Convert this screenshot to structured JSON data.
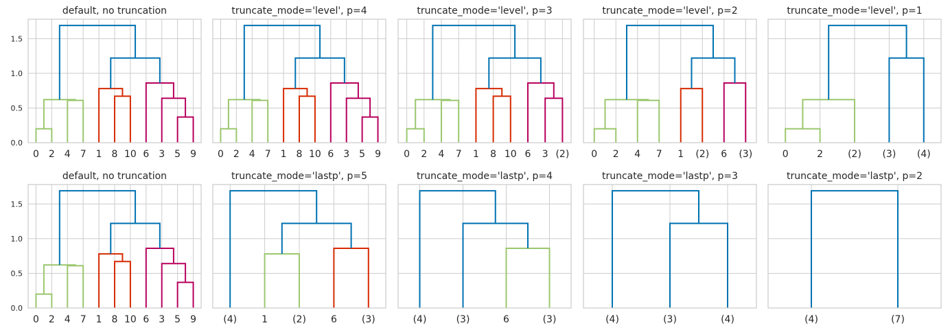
{
  "chart_data": [
    {
      "type": "dendrogram",
      "title": "default, no truncation",
      "ylim": [
        0,
        1.78
      ],
      "yticks": [
        0.0,
        0.5,
        1.0,
        1.5
      ],
      "show_yticks": true,
      "leaves": [
        "0",
        "2",
        "4",
        "7",
        "1",
        "8",
        "10",
        "6",
        "3",
        "5",
        "9"
      ],
      "links": [
        [
          0.5,
          1.5,
          0,
          0,
          0.2,
          0.2,
          "#9bc76e"
        ],
        [
          2.5,
          3.5,
          0,
          0,
          0.61,
          0.61,
          "#9bc76e"
        ],
        [
          1,
          3,
          0.2,
          0.61,
          0.62,
          0.62,
          "#9bc76e"
        ],
        [
          5.5,
          6.5,
          0,
          0,
          0.67,
          0.67,
          "#d62a00"
        ],
        [
          4.5,
          6,
          0,
          0.67,
          0.78,
          0.78,
          "#d62a00"
        ],
        [
          9.5,
          10.5,
          0,
          0,
          0.37,
          0.37,
          "#b8005e"
        ],
        [
          8.5,
          10,
          0,
          0.37,
          0.64,
          0.64,
          "#b8005e"
        ],
        [
          7.5,
          9.25,
          0,
          0.64,
          0.86,
          0.86,
          "#b8005e"
        ],
        [
          5.25,
          8.375,
          0.78,
          0.86,
          1.22,
          1.22,
          "#0072b2"
        ],
        [
          2,
          6.8125,
          0.62,
          1.22,
          1.69,
          1.69,
          "#0072b2"
        ]
      ]
    },
    {
      "type": "dendrogram",
      "title": "truncate_mode='level', p=4",
      "ylim": [
        0,
        1.78
      ],
      "yticks": [
        0.0,
        0.5,
        1.0,
        1.5
      ],
      "show_yticks": false,
      "leaves": [
        "0",
        "2",
        "4",
        "7",
        "1",
        "8",
        "10",
        "6",
        "3",
        "5",
        "9"
      ],
      "links": [
        [
          0.5,
          1.5,
          0,
          0,
          0.2,
          0.2,
          "#9bc76e"
        ],
        [
          2.5,
          3.5,
          0,
          0,
          0.61,
          0.61,
          "#9bc76e"
        ],
        [
          1,
          3,
          0.2,
          0.61,
          0.62,
          0.62,
          "#9bc76e"
        ],
        [
          5.5,
          6.5,
          0,
          0,
          0.67,
          0.67,
          "#d62a00"
        ],
        [
          4.5,
          6,
          0,
          0.67,
          0.78,
          0.78,
          "#d62a00"
        ],
        [
          9.5,
          10.5,
          0,
          0,
          0.37,
          0.37,
          "#b8005e"
        ],
        [
          8.5,
          10,
          0,
          0.37,
          0.64,
          0.64,
          "#b8005e"
        ],
        [
          7.5,
          9.25,
          0,
          0.64,
          0.86,
          0.86,
          "#b8005e"
        ],
        [
          5.25,
          8.375,
          0.78,
          0.86,
          1.22,
          1.22,
          "#0072b2"
        ],
        [
          2,
          6.8125,
          0.62,
          1.22,
          1.69,
          1.69,
          "#0072b2"
        ]
      ]
    },
    {
      "type": "dendrogram",
      "title": "truncate_mode='level', p=3",
      "ylim": [
        0,
        1.78
      ],
      "yticks": [
        0.0,
        0.5,
        1.0,
        1.5
      ],
      "show_yticks": false,
      "leaves": [
        "0",
        "2",
        "4",
        "7",
        "1",
        "8",
        "10",
        "6",
        "3",
        "(2)"
      ],
      "links": [
        [
          0.5,
          1.5,
          0,
          0,
          0.2,
          0.2,
          "#9bc76e"
        ],
        [
          2.5,
          3.5,
          0,
          0,
          0.61,
          0.61,
          "#9bc76e"
        ],
        [
          1,
          3,
          0.2,
          0.61,
          0.62,
          0.62,
          "#9bc76e"
        ],
        [
          5.5,
          6.5,
          0,
          0,
          0.67,
          0.67,
          "#d62a00"
        ],
        [
          4.5,
          6,
          0,
          0.67,
          0.78,
          0.78,
          "#d62a00"
        ],
        [
          8.5,
          9.5,
          0,
          0,
          0.64,
          0.64,
          "#b8005e"
        ],
        [
          7.5,
          9,
          0,
          0.64,
          0.86,
          0.86,
          "#b8005e"
        ],
        [
          5.25,
          8.25,
          0.78,
          0.86,
          1.22,
          1.22,
          "#0072b2"
        ],
        [
          2,
          6.75,
          0.62,
          1.22,
          1.69,
          1.69,
          "#0072b2"
        ]
      ]
    },
    {
      "type": "dendrogram",
      "title": "truncate_mode='level', p=2",
      "ylim": [
        0,
        1.78
      ],
      "yticks": [
        0.0,
        0.5,
        1.0,
        1.5
      ],
      "show_yticks": false,
      "leaves": [
        "0",
        "2",
        "4",
        "7",
        "1",
        "(2)",
        "6",
        "(3)"
      ],
      "links": [
        [
          0.5,
          1.5,
          0,
          0,
          0.2,
          0.2,
          "#9bc76e"
        ],
        [
          2.5,
          3.5,
          0,
          0,
          0.61,
          0.61,
          "#9bc76e"
        ],
        [
          1,
          3,
          0.2,
          0.61,
          0.62,
          0.62,
          "#9bc76e"
        ],
        [
          4.5,
          5.5,
          0,
          0,
          0.78,
          0.78,
          "#d62a00"
        ],
        [
          6.5,
          7.5,
          0,
          0,
          0.86,
          0.86,
          "#b8005e"
        ],
        [
          5,
          7,
          0.78,
          0.86,
          1.22,
          1.22,
          "#0072b2"
        ],
        [
          2,
          6,
          0.62,
          1.22,
          1.69,
          1.69,
          "#0072b2"
        ]
      ]
    },
    {
      "type": "dendrogram",
      "title": "truncate_mode='level', p=1",
      "ylim": [
        0,
        1.78
      ],
      "yticks": [
        0.0,
        0.5,
        1.0,
        1.5
      ],
      "show_yticks": false,
      "leaves": [
        "0",
        "2",
        "(2)",
        "(3)",
        "(4)"
      ],
      "links": [
        [
          0.5,
          1.5,
          0,
          0,
          0.2,
          0.2,
          "#9bc76e"
        ],
        [
          1,
          2.5,
          0.2,
          0,
          0.62,
          0.62,
          "#9bc76e"
        ],
        [
          3.5,
          4.5,
          0,
          0,
          1.22,
          1.22,
          "#0072b2"
        ],
        [
          1.75,
          4,
          0.62,
          1.22,
          1.69,
          1.69,
          "#0072b2"
        ]
      ]
    },
    {
      "type": "dendrogram",
      "title": "default, no truncation",
      "ylim": [
        0,
        1.78
      ],
      "yticks": [
        0.0,
        0.5,
        1.0,
        1.5
      ],
      "show_yticks": true,
      "leaves": [
        "0",
        "2",
        "4",
        "7",
        "1",
        "8",
        "10",
        "6",
        "3",
        "5",
        "9"
      ],
      "links": [
        [
          0.5,
          1.5,
          0,
          0,
          0.2,
          0.2,
          "#9bc76e"
        ],
        [
          2.5,
          3.5,
          0,
          0,
          0.61,
          0.61,
          "#9bc76e"
        ],
        [
          1,
          3,
          0.2,
          0.61,
          0.62,
          0.62,
          "#9bc76e"
        ],
        [
          5.5,
          6.5,
          0,
          0,
          0.67,
          0.67,
          "#d62a00"
        ],
        [
          4.5,
          6,
          0,
          0.67,
          0.78,
          0.78,
          "#d62a00"
        ],
        [
          9.5,
          10.5,
          0,
          0,
          0.37,
          0.37,
          "#b8005e"
        ],
        [
          8.5,
          10,
          0,
          0.37,
          0.64,
          0.64,
          "#b8005e"
        ],
        [
          7.5,
          9.25,
          0,
          0.64,
          0.86,
          0.86,
          "#b8005e"
        ],
        [
          5.25,
          8.375,
          0.78,
          0.86,
          1.22,
          1.22,
          "#0072b2"
        ],
        [
          2,
          6.8125,
          0.62,
          1.22,
          1.69,
          1.69,
          "#0072b2"
        ]
      ]
    },
    {
      "type": "dendrogram",
      "title": "truncate_mode='lastp', p=5",
      "ylim": [
        0,
        1.78
      ],
      "yticks": [
        0.0,
        0.5,
        1.0,
        1.5
      ],
      "show_yticks": false,
      "leaves": [
        "(4)",
        "1",
        "(2)",
        "6",
        "(3)"
      ],
      "links": [
        [
          1.5,
          2.5,
          0,
          0,
          0.78,
          0.78,
          "#9bc76e"
        ],
        [
          3.5,
          4.5,
          0,
          0,
          0.86,
          0.86,
          "#d62a00"
        ],
        [
          2,
          4,
          0.78,
          0.86,
          1.22,
          1.22,
          "#0072b2"
        ],
        [
          0.5,
          3,
          0,
          1.22,
          1.69,
          1.69,
          "#0072b2"
        ]
      ]
    },
    {
      "type": "dendrogram",
      "title": "truncate_mode='lastp', p=4",
      "ylim": [
        0,
        1.78
      ],
      "yticks": [
        0.0,
        0.5,
        1.0,
        1.5
      ],
      "show_yticks": false,
      "leaves": [
        "(4)",
        "(3)",
        "6",
        "(3)"
      ],
      "links": [
        [
          2.5,
          3.5,
          0,
          0,
          0.86,
          0.86,
          "#9bc76e"
        ],
        [
          1.5,
          3,
          0,
          0.86,
          1.22,
          1.22,
          "#0072b2"
        ],
        [
          0.5,
          2.25,
          0,
          1.22,
          1.69,
          1.69,
          "#0072b2"
        ]
      ]
    },
    {
      "type": "dendrogram",
      "title": "truncate_mode='lastp', p=3",
      "ylim": [
        0,
        1.78
      ],
      "yticks": [
        0.0,
        0.5,
        1.0,
        1.5
      ],
      "show_yticks": false,
      "leaves": [
        "(4)",
        "(3)",
        "(4)"
      ],
      "links": [
        [
          1.5,
          2.5,
          0,
          0,
          1.22,
          1.22,
          "#0072b2"
        ],
        [
          0.5,
          2,
          0,
          1.22,
          1.69,
          1.69,
          "#0072b2"
        ]
      ]
    },
    {
      "type": "dendrogram",
      "title": "truncate_mode='lastp', p=2",
      "ylim": [
        0,
        1.78
      ],
      "yticks": [
        0.0,
        0.5,
        1.0,
        1.5
      ],
      "show_yticks": false,
      "leaves": [
        "(4)",
        "(7)"
      ],
      "links": [
        [
          0.5,
          1.5,
          0,
          0,
          1.69,
          1.69,
          "#0072b2"
        ]
      ]
    }
  ]
}
